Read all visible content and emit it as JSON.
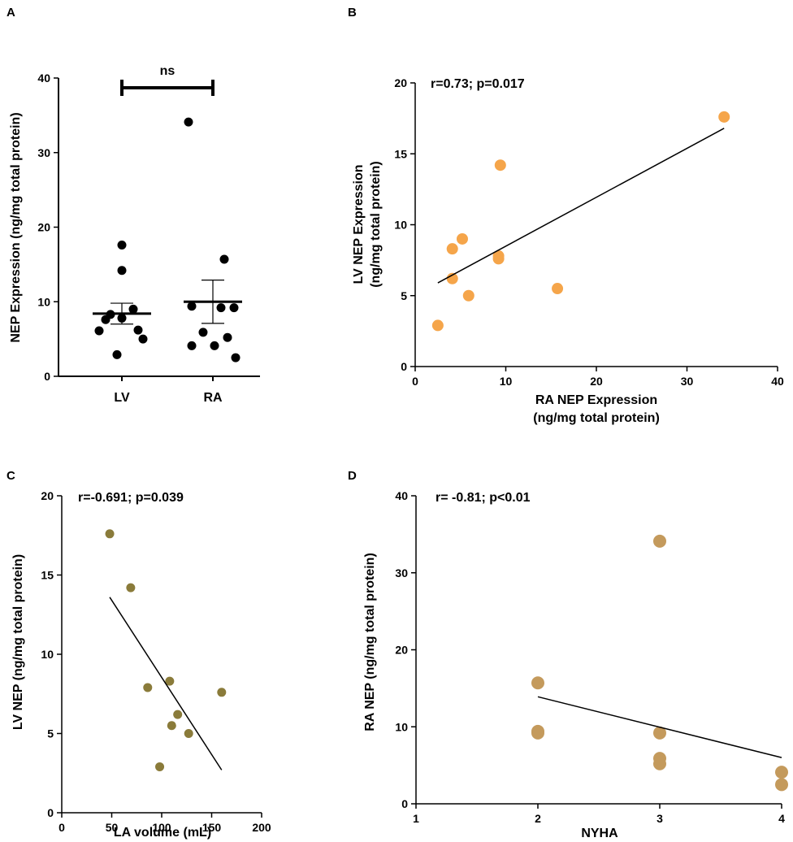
{
  "chart_data": [
    {
      "panel": "A",
      "type": "scatter",
      "subtype": "dot-plot",
      "categories": [
        "LV",
        "RA"
      ],
      "series": [
        {
          "name": "LV",
          "values": [
            17.6,
            14.2,
            9.0,
            8.3,
            7.8,
            7.6,
            6.2,
            6.1,
            5.0,
            2.9
          ]
        },
        {
          "name": "RA",
          "values": [
            34.1,
            15.7,
            9.4,
            9.2,
            9.2,
            5.9,
            5.2,
            4.1,
            4.1,
            2.5
          ]
        }
      ],
      "mean_sem": [
        {
          "category": "LV",
          "mean": 8.4,
          "upper": 9.8,
          "lower": 7.0
        },
        {
          "category": "RA",
          "mean": 10.0,
          "upper": 12.9,
          "lower": 7.1
        }
      ],
      "significance": "ns",
      "ylabel": "NEP Expression (ng/mg total protein)",
      "xlabel": "",
      "ylim": [
        0,
        40
      ],
      "yticks": [
        "0",
        "10",
        "20",
        "30",
        "40"
      ]
    },
    {
      "panel": "B",
      "type": "scatter",
      "x": [
        2.5,
        4.1,
        4.1,
        5.2,
        5.9,
        9.2,
        9.2,
        9.4,
        15.7,
        34.1
      ],
      "y": [
        2.9,
        6.2,
        8.3,
        9.0,
        5.0,
        7.6,
        7.8,
        14.2,
        5.5,
        17.6
      ],
      "fit": {
        "x": [
          2.5,
          34.1
        ],
        "y": [
          5.9,
          16.8
        ]
      },
      "annotation": "r=0.73; p=0.017",
      "xlabel": "RA NEP  Expression",
      "xlabel2": "(ng/mg total protein)",
      "ylabel": "LV NEP Expression",
      "ylabel2": "(ng/mg total protein)",
      "xlim": [
        0,
        40
      ],
      "ylim": [
        0,
        20
      ],
      "xticks": [
        "0",
        "10",
        "20",
        "30",
        "40"
      ],
      "yticks": [
        "0",
        "5",
        "10",
        "15",
        "20"
      ],
      "color": "#f5a54a"
    },
    {
      "panel": "C",
      "type": "scatter",
      "x": [
        48,
        69,
        86,
        98,
        108,
        110,
        116,
        127,
        160
      ],
      "y": [
        17.6,
        14.2,
        7.9,
        2.9,
        8.3,
        5.5,
        6.2,
        5.0,
        7.6
      ],
      "fit": {
        "x": [
          48,
          160
        ],
        "y": [
          13.6,
          2.7
        ]
      },
      "annotation": "r=-0.691; p=0.039",
      "xlabel": "LA volume (mL)",
      "ylabel": "LV NEP (ng/mg total protein)",
      "xlim": [
        0,
        200
      ],
      "ylim": [
        0,
        20
      ],
      "xticks": [
        "0",
        "50",
        "100",
        "150",
        "200"
      ],
      "yticks": [
        "0",
        "5",
        "10",
        "15",
        "20"
      ],
      "color": "#8a7b3a"
    },
    {
      "panel": "D",
      "type": "scatter",
      "x": [
        2,
        2,
        2,
        3,
        3,
        3,
        3,
        4,
        4
      ],
      "y": [
        15.7,
        9.4,
        9.2,
        34.1,
        9.2,
        5.9,
        5.2,
        4.1,
        2.5
      ],
      "fit": {
        "x": [
          2,
          4
        ],
        "y": [
          13.9,
          6.0
        ]
      },
      "annotation": "r= -0.81; p<0.01",
      "xlabel": "NYHA",
      "ylabel": "RA NEP  (ng/mg total protein)",
      "xlim": [
        1,
        4
      ],
      "ylim": [
        0,
        40
      ],
      "xticks": [
        "1",
        "2",
        "3",
        "4"
      ],
      "yticks": [
        "0",
        "10",
        "20",
        "30",
        "40"
      ],
      "color": "#c49a5c"
    }
  ]
}
